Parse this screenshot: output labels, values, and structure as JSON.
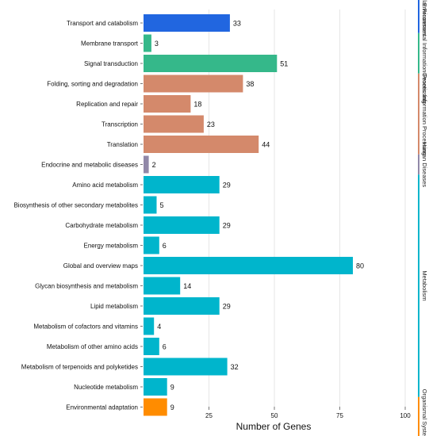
{
  "chart_data": {
    "type": "bar",
    "orientation": "horizontal",
    "xlabel": "Number of Genes",
    "xlim": [
      0,
      100
    ],
    "xticks": [
      25,
      50,
      75,
      100
    ],
    "grid": "vertical",
    "categories": [
      "Transport and catabolism",
      "Membrane transport",
      "Signal transduction",
      "Folding, sorting and degradation",
      "Replication and repair",
      "Transcription",
      "Translation",
      "Endocrine and metabolic diseases",
      "Amino acid metabolism",
      "Biosynthesis of other secondary metabolites",
      "Carbohydrate metabolism",
      "Energy metabolism",
      "Global and overview maps",
      "Glycan biosynthesis and metabolism",
      "Lipid metabolism",
      "Metabolism of cofactors and vitamins",
      "Metabolism of other amino acids",
      "Metabolism of terpenoids and polyketides",
      "Nucleotide metabolism",
      "Environmental adaptation"
    ],
    "values": [
      33,
      3,
      51,
      38,
      18,
      23,
      44,
      2,
      29,
      5,
      29,
      6,
      80,
      14,
      29,
      4,
      6,
      32,
      9,
      9
    ],
    "groups": [
      {
        "name": "Cellular Processes",
        "display_label": "ular Processes",
        "start": 0,
        "end": 0,
        "color": "#2166e0"
      },
      {
        "name": "Environmental Information Processing",
        "display_label": "Environmental Information Processing",
        "start": 1,
        "end": 2,
        "color": "#35b88a"
      },
      {
        "name": "Genetic Information Processing",
        "display_label": "Genetic Information Processing",
        "start": 3,
        "end": 6,
        "color": "#d4896b"
      },
      {
        "name": "Human Diseases",
        "display_label": "Human Diseases",
        "start": 7,
        "end": 7,
        "color": "#9188a8"
      },
      {
        "name": "Metabolism",
        "display_label": "Metabolism",
        "start": 8,
        "end": 18,
        "color": "#00b5cc"
      },
      {
        "name": "Organismal Systems",
        "display_label": "Organismal Systems",
        "start": 19,
        "end": 19,
        "color": "#ff8c00"
      }
    ]
  }
}
